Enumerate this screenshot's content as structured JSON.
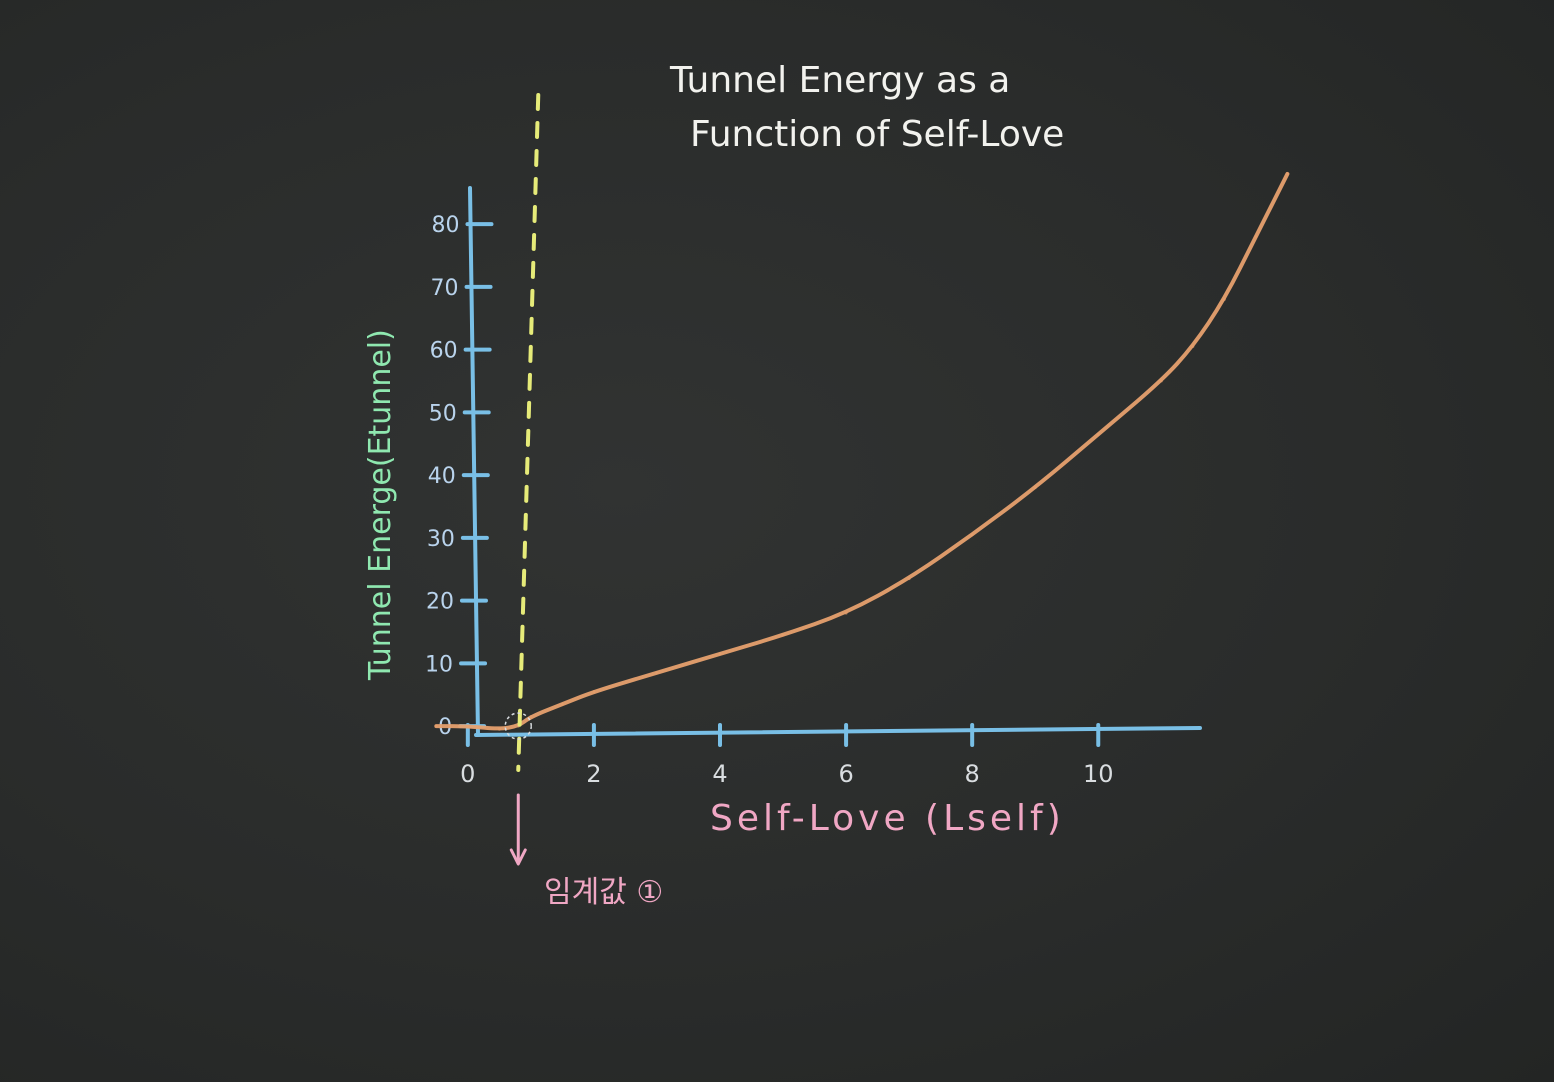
{
  "chart_data": {
    "type": "line",
    "title_lines": [
      "Tunnel Energy as a",
      "Function of Self-Love"
    ],
    "xlabel": "Self-Love (Lself)",
    "ylabel": "Tunnel Energe(Etunnel)",
    "x_ticks": [
      0,
      2,
      4,
      6,
      8,
      10
    ],
    "y_ticks": [
      0,
      10,
      20,
      30,
      40,
      50,
      60,
      70,
      80
    ],
    "xlim": [
      -0.6,
      13.2
    ],
    "ylim": [
      -7,
      95
    ],
    "series": [
      {
        "x": [
          -0.5,
          0.0,
          0.5,
          0.8,
          1.0,
          1.5,
          2.0,
          3.0,
          4.0,
          5.0,
          6.0,
          7.0,
          8.0,
          9.0,
          10.0,
          11.0,
          11.5,
          12.0,
          12.5,
          13.0
        ],
        "y": [
          0,
          0,
          -0.5,
          0,
          1.5,
          3.5,
          5.5,
          8.5,
          11.5,
          14.5,
          18,
          23.5,
          30.5,
          38,
          46.5,
          55,
          60.5,
          68,
          78,
          88
        ]
      }
    ],
    "threshold": {
      "x": 0.8,
      "label": "임계값 ①"
    },
    "colors": {
      "axes": "#79bfe6",
      "curve": "#e6a06e",
      "threshold_line": "#e6eb79",
      "title": "#f2f2ee",
      "ylabel": "#8fe8b0",
      "xlabel": "#f0a7c4",
      "threshold_label": "#f0a7c4",
      "tick_labels": "#d9dde0",
      "y_tick_labels": "#b9d3ec"
    }
  }
}
